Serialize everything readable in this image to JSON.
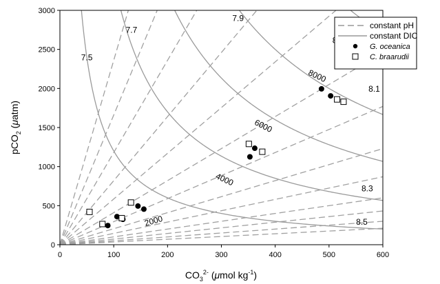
{
  "chart_data": {
    "type": "scatter",
    "xlabel": {
      "base": "CO",
      "sub": "3",
      "sup": "2-",
      "mid": " (",
      "mu": "μ",
      "unit": "mol kg",
      "unit_sup": "-1",
      "close": ")"
    },
    "ylabel": {
      "base": "pCO",
      "sub": "2",
      "mid": " (",
      "mu": "μ",
      "unit": "atm",
      "close": ")"
    },
    "xlim": [
      0,
      600
    ],
    "ylim": [
      0,
      3000
    ],
    "x_ticks": [
      "0",
      "100",
      "200",
      "300",
      "400",
      "500",
      "600"
    ],
    "y_ticks": [
      "0",
      "500",
      "1000",
      "1500",
      "2000",
      "2500",
      "3000"
    ],
    "legend": {
      "position": "top-right",
      "entries": [
        {
          "label": "constant pH",
          "style": "dashed-line"
        },
        {
          "label": "constant DIC",
          "style": "solid-line"
        },
        {
          "label": "G. oceanica",
          "style": "filled-circle"
        },
        {
          "label": "C. braarudii",
          "style": "open-square"
        }
      ]
    },
    "ph_lines": {
      "slopes": [
        23.6,
        16.6,
        11.8,
        8.2,
        5.85,
        4.1,
        2.95,
        2.05,
        1.45,
        1.0,
        0.72,
        0.5,
        0.35
      ],
      "labels": [
        {
          "text": "7.5",
          "at": [
            50,
            2395
          ]
        },
        {
          "text": "7.7",
          "at": [
            133,
            2750
          ]
        },
        {
          "text": "7.9",
          "at": [
            331,
            2900
          ]
        },
        {
          "text": "8.0",
          "at": [
            517,
            2615
          ]
        },
        {
          "text": "8.1",
          "at": [
            584,
            1995
          ]
        },
        {
          "text": "8.3",
          "at": [
            571,
            720
          ]
        },
        {
          "text": "8.5",
          "at": [
            561,
            290
          ]
        }
      ]
    },
    "dic_curves": {
      "k": [
        120000,
        340000,
        640000,
        1000000,
        1620000,
        2600000,
        4000000
      ],
      "labels": [
        {
          "text": "2000",
          "at": [
            174,
            305
          ],
          "angle": -16
        },
        {
          "text": "4000",
          "at": [
            306,
            835
          ],
          "angle": 25
        },
        {
          "text": "6000",
          "at": [
            378,
            1520
          ],
          "angle": 27
        },
        {
          "text": "8000",
          "at": [
            478,
            2160
          ],
          "angle": 25
        }
      ]
    },
    "series": [
      {
        "name": "G. oceanica",
        "marker": "filled-circle",
        "points": [
          [
            54,
            420
          ],
          [
            89,
            245
          ],
          [
            106,
            360
          ],
          [
            117,
            325
          ],
          [
            145,
            495
          ],
          [
            156,
            455
          ],
          [
            353,
            1125
          ],
          [
            362,
            1235
          ],
          [
            486,
            1995
          ],
          [
            503,
            1905
          ]
        ]
      },
      {
        "name": "C. braarudii",
        "marker": "open-square",
        "points": [
          [
            55,
            420
          ],
          [
            79,
            265
          ],
          [
            115,
            340
          ],
          [
            132,
            540
          ],
          [
            351,
            1290
          ],
          [
            376,
            1190
          ],
          [
            515,
            1860
          ],
          [
            527,
            1830
          ]
        ]
      }
    ],
    "grid": false
  }
}
